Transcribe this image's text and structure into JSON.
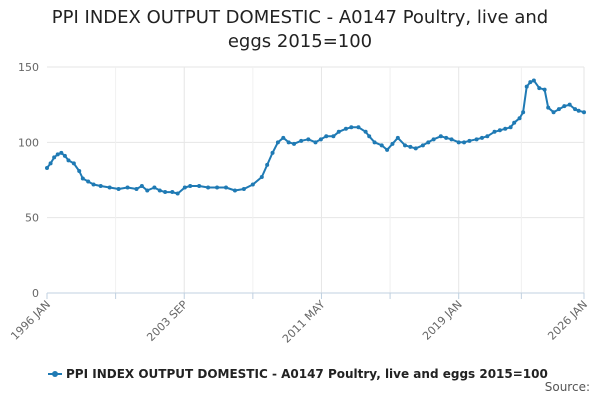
{
  "chart_data": {
    "type": "line",
    "title_lines": [
      "PPI INDEX OUTPUT DOMESTIC - A0147 Poultry, live and",
      "eggs 2015=100"
    ],
    "x_tick_labels": [
      "1996 JAN",
      "2003 SEP",
      "2011 MAY",
      "2019 JAN",
      "2026 JAN"
    ],
    "x_tick_values": [
      1996.0,
      2003.667,
      2011.333,
      2019.0,
      2026.0
    ],
    "xlim": [
      1996.0,
      2026.0
    ],
    "ylim": [
      0,
      150
    ],
    "y_ticks": [
      0,
      50,
      100,
      150
    ],
    "grid": true,
    "legend_position": "bottom",
    "series": [
      {
        "name": "PPI INDEX OUTPUT DOMESTIC - A0147 Poultry, live and eggs 2015=100",
        "color": "#1f7ab4",
        "x": [
          1996.0,
          1996.2,
          1996.4,
          1996.6,
          1996.8,
          1997.0,
          1997.2,
          1997.5,
          1997.8,
          1998.0,
          1998.3,
          1998.6,
          1999.0,
          1999.5,
          2000.0,
          2000.5,
          2001.0,
          2001.3,
          2001.6,
          2002.0,
          2002.3,
          2002.6,
          2003.0,
          2003.3,
          2003.7,
          2004.0,
          2004.5,
          2005.0,
          2005.5,
          2006.0,
          2006.5,
          2007.0,
          2007.5,
          2008.0,
          2008.3,
          2008.6,
          2008.9,
          2009.2,
          2009.5,
          2009.8,
          2010.2,
          2010.6,
          2011.0,
          2011.3,
          2011.6,
          2012.0,
          2012.3,
          2012.7,
          2013.0,
          2013.4,
          2013.8,
          2014.0,
          2014.3,
          2014.7,
          2015.0,
          2015.3,
          2015.6,
          2016.0,
          2016.3,
          2016.6,
          2017.0,
          2017.3,
          2017.6,
          2018.0,
          2018.3,
          2018.6,
          2019.0,
          2019.3,
          2019.6,
          2020.0,
          2020.3,
          2020.6,
          2021.0,
          2021.3,
          2021.6,
          2021.9,
          2022.1,
          2022.4,
          2022.6,
          2022.8,
          2023.0,
          2023.2,
          2023.5,
          2023.8,
          2024.0,
          2024.3,
          2024.6,
          2024.9,
          2025.2,
          2025.5,
          2025.7,
          2026.0
        ],
        "values": [
          83,
          86,
          90,
          92,
          93,
          91,
          88,
          86,
          81,
          76,
          74,
          72,
          71,
          70,
          69,
          70,
          69,
          71,
          68,
          70,
          68,
          67,
          67,
          66,
          70,
          71,
          71,
          70,
          70,
          70,
          68,
          69,
          72,
          77,
          85,
          93,
          100,
          103,
          100,
          99,
          101,
          102,
          100,
          102,
          104,
          104,
          107,
          109,
          110,
          110,
          107,
          104,
          100,
          98,
          95,
          99,
          103,
          98,
          97,
          96,
          98,
          100,
          102,
          104,
          103,
          102,
          100,
          100,
          101,
          102,
          103,
          104,
          107,
          108,
          109,
          110,
          113,
          116,
          120,
          137,
          140,
          141,
          136,
          135,
          123,
          120,
          122,
          124,
          125,
          122,
          121,
          120
        ]
      }
    ]
  },
  "source_label": "Source:"
}
